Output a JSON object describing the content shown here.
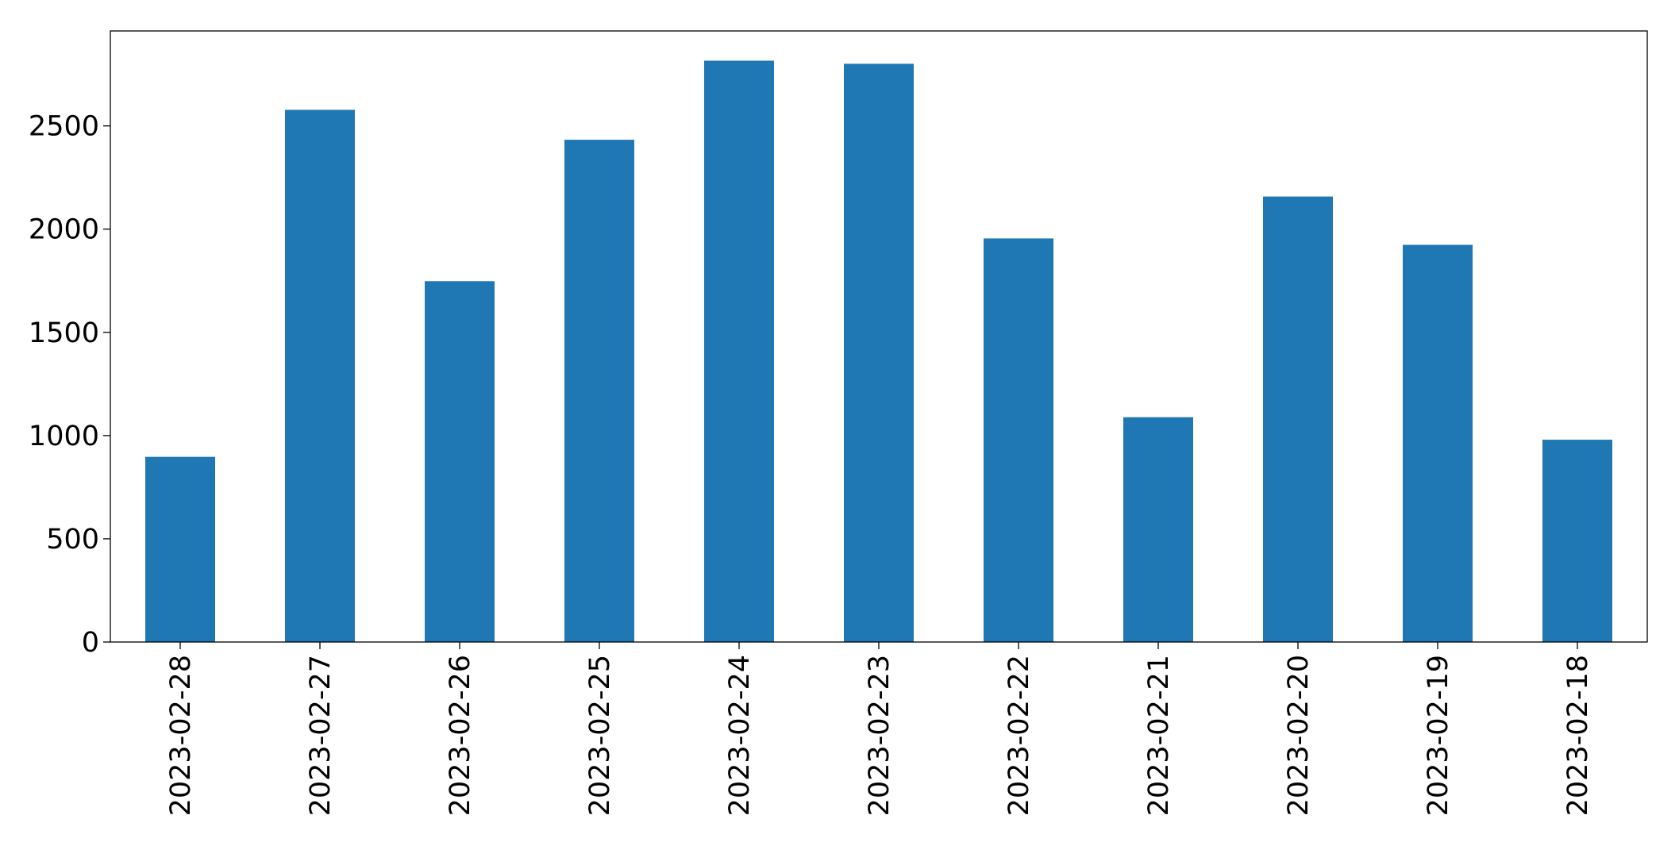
{
  "chart_data": {
    "type": "bar",
    "categories": [
      "2023-02-28",
      "2023-02-27",
      "2023-02-26",
      "2023-02-25",
      "2023-02-24",
      "2023-02-23",
      "2023-02-22",
      "2023-02-21",
      "2023-02-20",
      "2023-02-19",
      "2023-02-18"
    ],
    "values": [
      897,
      2578,
      1748,
      2433,
      2816,
      2801,
      1955,
      1089,
      2158,
      1924,
      980
    ],
    "color": "#1f77b4",
    "ylim": [
      0,
      2960
    ],
    "yticks": [
      0,
      500,
      1000,
      1500,
      2000,
      2500
    ],
    "grid": false
  }
}
